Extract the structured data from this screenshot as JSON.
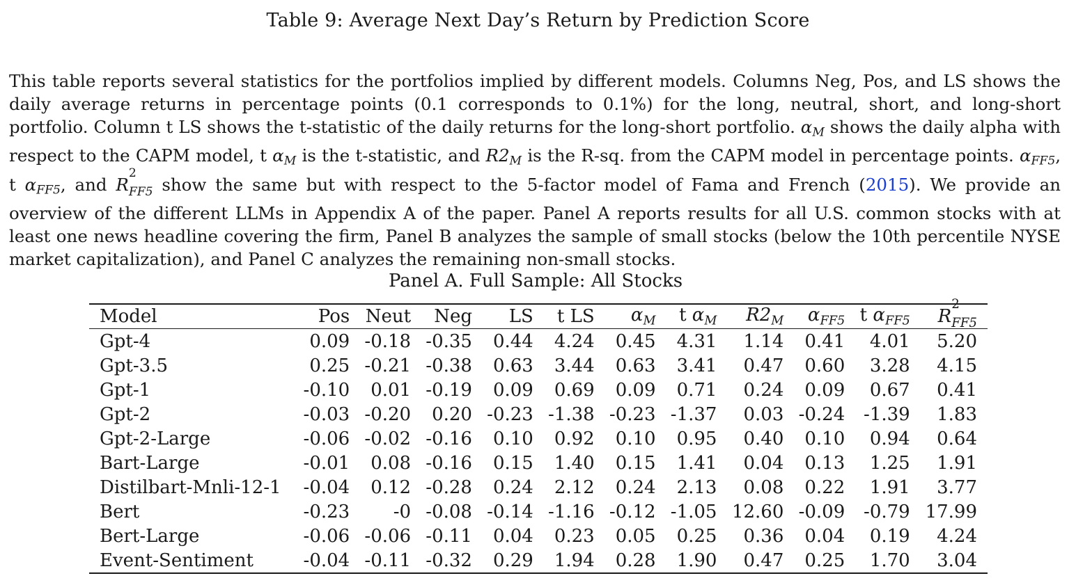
{
  "title": "Table 9: Average Next Day’s Return by Prediction Score",
  "caption": {
    "p1": "This table reports several statistics for the portfolios implied by different models. Columns Neg, Pos, and LS shows the daily average returns in percentage points (0.1 corresponds to 0.1%) for the long, neutral, short, and long-short portfolio. Column t LS shows the t-statistic of the daily returns for the long-short portfolio.",
    "p2": "shows the daily alpha with respect to the CAPM model, t",
    "p3": "is the t-statistic, and",
    "p4": "is the R-sq. from the CAPM model in percentage points.",
    "p5": ", t",
    "p6": ", and",
    "p7": "show the same but with respect to the 5-factor model of Fama and French (",
    "cite_year": "2015",
    "p8": "). We provide an overview of the different LLMs in Appendix A of the paper. Panel A reports results for all U.S. common stocks with at least one news headline covering the firm, Panel B analyzes the sample of small stocks (below the 10th percentile NYSE market capitalization), and Panel C analyzes the remaining non-small stocks.",
    "sym_alpha": "α",
    "sym_R2": "R2",
    "sym_R": "R",
    "sup_2": "2",
    "sub_M": "M",
    "sub_FF5": "FF5"
  },
  "panel": {
    "title": "Panel A. Full Sample: All Stocks",
    "headers": {
      "model": "Model",
      "pos": "Pos",
      "neut": "Neut",
      "neg": "Neg",
      "ls": "LS",
      "tls": "t LS",
      "t_prefix": "t",
      "alpha": "α",
      "R2": "R2",
      "R": "R",
      "sup2": "2",
      "subM": "M",
      "subFF5": "FF5"
    },
    "rows": [
      {
        "model": "Gpt-4",
        "values": [
          "0.09",
          "-0.18",
          "-0.35",
          "0.44",
          "4.24",
          "0.45",
          "4.31",
          "1.14",
          "0.41",
          "4.01",
          "5.20"
        ]
      },
      {
        "model": "Gpt-3.5",
        "values": [
          "0.25",
          "-0.21",
          "-0.38",
          "0.63",
          "3.44",
          "0.63",
          "3.41",
          "0.47",
          "0.60",
          "3.28",
          "4.15"
        ]
      },
      {
        "model": "Gpt-1",
        "values": [
          "-0.10",
          "0.01",
          "-0.19",
          "0.09",
          "0.69",
          "0.09",
          "0.71",
          "0.24",
          "0.09",
          "0.67",
          "0.41"
        ]
      },
      {
        "model": "Gpt-2",
        "values": [
          "-0.03",
          "-0.20",
          "0.20",
          "-0.23",
          "-1.38",
          "-0.23",
          "-1.37",
          "0.03",
          "-0.24",
          "-1.39",
          "1.83"
        ]
      },
      {
        "model": "Gpt-2-Large",
        "values": [
          "-0.06",
          "-0.02",
          "-0.16",
          "0.10",
          "0.92",
          "0.10",
          "0.95",
          "0.40",
          "0.10",
          "0.94",
          "0.64"
        ]
      },
      {
        "model": "Bart-Large",
        "values": [
          "-0.01",
          "0.08",
          "-0.16",
          "0.15",
          "1.40",
          "0.15",
          "1.41",
          "0.04",
          "0.13",
          "1.25",
          "1.91"
        ]
      },
      {
        "model": "Distilbart-Mnli-12-1",
        "values": [
          "-0.04",
          "0.12",
          "-0.28",
          "0.24",
          "2.12",
          "0.24",
          "2.13",
          "0.08",
          "0.22",
          "1.91",
          "3.77"
        ]
      },
      {
        "model": "Bert",
        "values": [
          "-0.23",
          "-0",
          "-0.08",
          "-0.14",
          "-1.16",
          "-0.12",
          "-1.05",
          "12.60",
          "-0.09",
          "-0.79",
          "17.99"
        ]
      },
      {
        "model": "Bert-Large",
        "values": [
          "-0.06",
          "-0.06",
          "-0.11",
          "0.04",
          "0.23",
          "0.05",
          "0.25",
          "0.36",
          "0.04",
          "0.19",
          "4.24"
        ]
      },
      {
        "model": "Event-Sentiment",
        "values": [
          "-0.04",
          "-0.11",
          "-0.32",
          "0.29",
          "1.94",
          "0.28",
          "1.90",
          "0.47",
          "0.25",
          "1.70",
          "3.04"
        ]
      }
    ]
  }
}
